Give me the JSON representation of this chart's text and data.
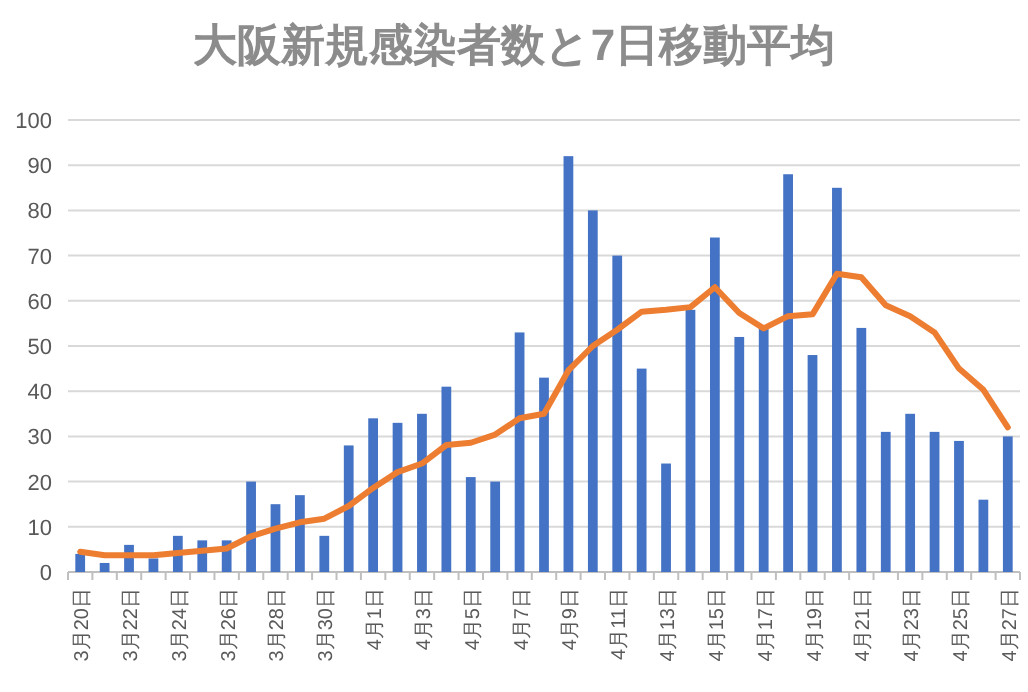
{
  "chart_data": {
    "type": "bar",
    "title": "大阪新規感染者数と7日移動平均",
    "categories": [
      "3月20日",
      null,
      "3月22日",
      null,
      "3月24日",
      null,
      "3月26日",
      null,
      "3月28日",
      null,
      "3月30日",
      null,
      "4月1日",
      null,
      "4月3日",
      null,
      "4月5日",
      null,
      "4月7日",
      null,
      "4月9日",
      null,
      "4月11日",
      null,
      "4月13日",
      null,
      "4月15日",
      null,
      "4月17日",
      null,
      "4月19日",
      null,
      "4月21日",
      null,
      "4月23日",
      null,
      "4月25日",
      null,
      "4月27日"
    ],
    "series": [
      {
        "color": "#4472c4",
        "values": [
          4,
          2,
          6,
          3,
          8,
          7,
          7,
          20,
          15,
          17,
          8,
          28,
          34,
          33,
          35,
          41,
          21,
          20,
          53,
          43,
          92,
          80,
          70,
          45,
          24,
          58,
          74,
          52,
          54,
          88,
          48,
          85,
          54,
          31,
          35,
          31,
          29,
          16,
          30
        ]
      },
      {
        "type": "line",
        "color": "#ed7d31",
        "values": [
          4.5,
          3.7,
          3.7,
          3.7,
          4.2,
          4.7,
          5.2,
          7.9,
          9.6,
          11,
          11.8,
          14.6,
          18.6,
          22.1,
          24,
          28.1,
          28.6,
          30.4,
          34,
          35,
          44.6,
          50,
          53.6,
          57.6,
          58,
          58.6,
          63,
          57.3,
          53.9,
          56.6,
          57,
          66,
          65.2,
          59,
          56.6,
          53,
          45,
          40.3,
          32
        ]
      }
    ],
    "ylim": [
      0,
      100
    ],
    "yticks": [
      0,
      10,
      20,
      30,
      40,
      50,
      60,
      70,
      80,
      90,
      100
    ],
    "grid": "y"
  }
}
